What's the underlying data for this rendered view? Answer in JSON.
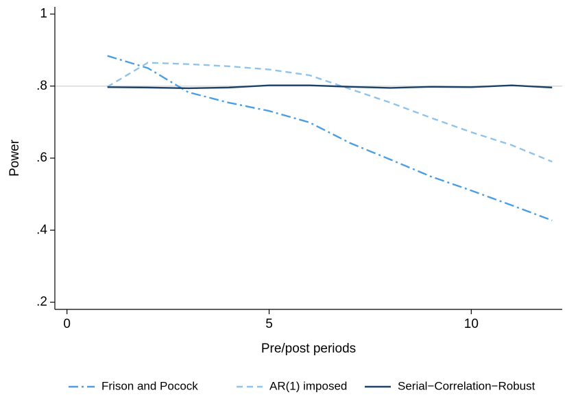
{
  "chart_data": {
    "type": "line",
    "xlabel": "Pre/post periods",
    "ylabel": "Power",
    "x": [
      1,
      2,
      3,
      4,
      5,
      6,
      7,
      8,
      9,
      10,
      11,
      12
    ],
    "series": [
      {
        "name": "Frison and Pocock",
        "color": "#4a9ee6",
        "dash": "dash-dot",
        "values": [
          0.884,
          0.85,
          0.783,
          0.754,
          0.731,
          0.699,
          0.642,
          0.596,
          0.549,
          0.51,
          0.469,
          0.427
        ]
      },
      {
        "name": "AR(1) imposed",
        "color": "#8fc3ea",
        "dash": "dash",
        "values": [
          0.798,
          0.865,
          0.861,
          0.855,
          0.846,
          0.83,
          0.792,
          0.754,
          0.712,
          0.672,
          0.636,
          0.59
        ]
      },
      {
        "name": "Serial−Correlation−Robust",
        "color": "#1b4266",
        "dash": "solid",
        "values": [
          0.797,
          0.796,
          0.794,
          0.796,
          0.802,
          0.802,
          0.798,
          0.795,
          0.798,
          0.797,
          0.802,
          0.796
        ]
      }
    ],
    "xlim": [
      -0.3,
      12.25
    ],
    "xticks": [
      0,
      5,
      10
    ],
    "ylim": [
      0.18,
      1.02
    ],
    "yticks": [
      {
        "value": 0.2,
        "label": ".2"
      },
      {
        "value": 0.4,
        "label": ".4"
      },
      {
        "value": 0.6,
        "label": ".6"
      },
      {
        "value": 0.8,
        "label": ".8"
      },
      1
    ],
    "reference_line": 0.8,
    "reference_color": "#d9d9d9",
    "legend": "bottom"
  }
}
